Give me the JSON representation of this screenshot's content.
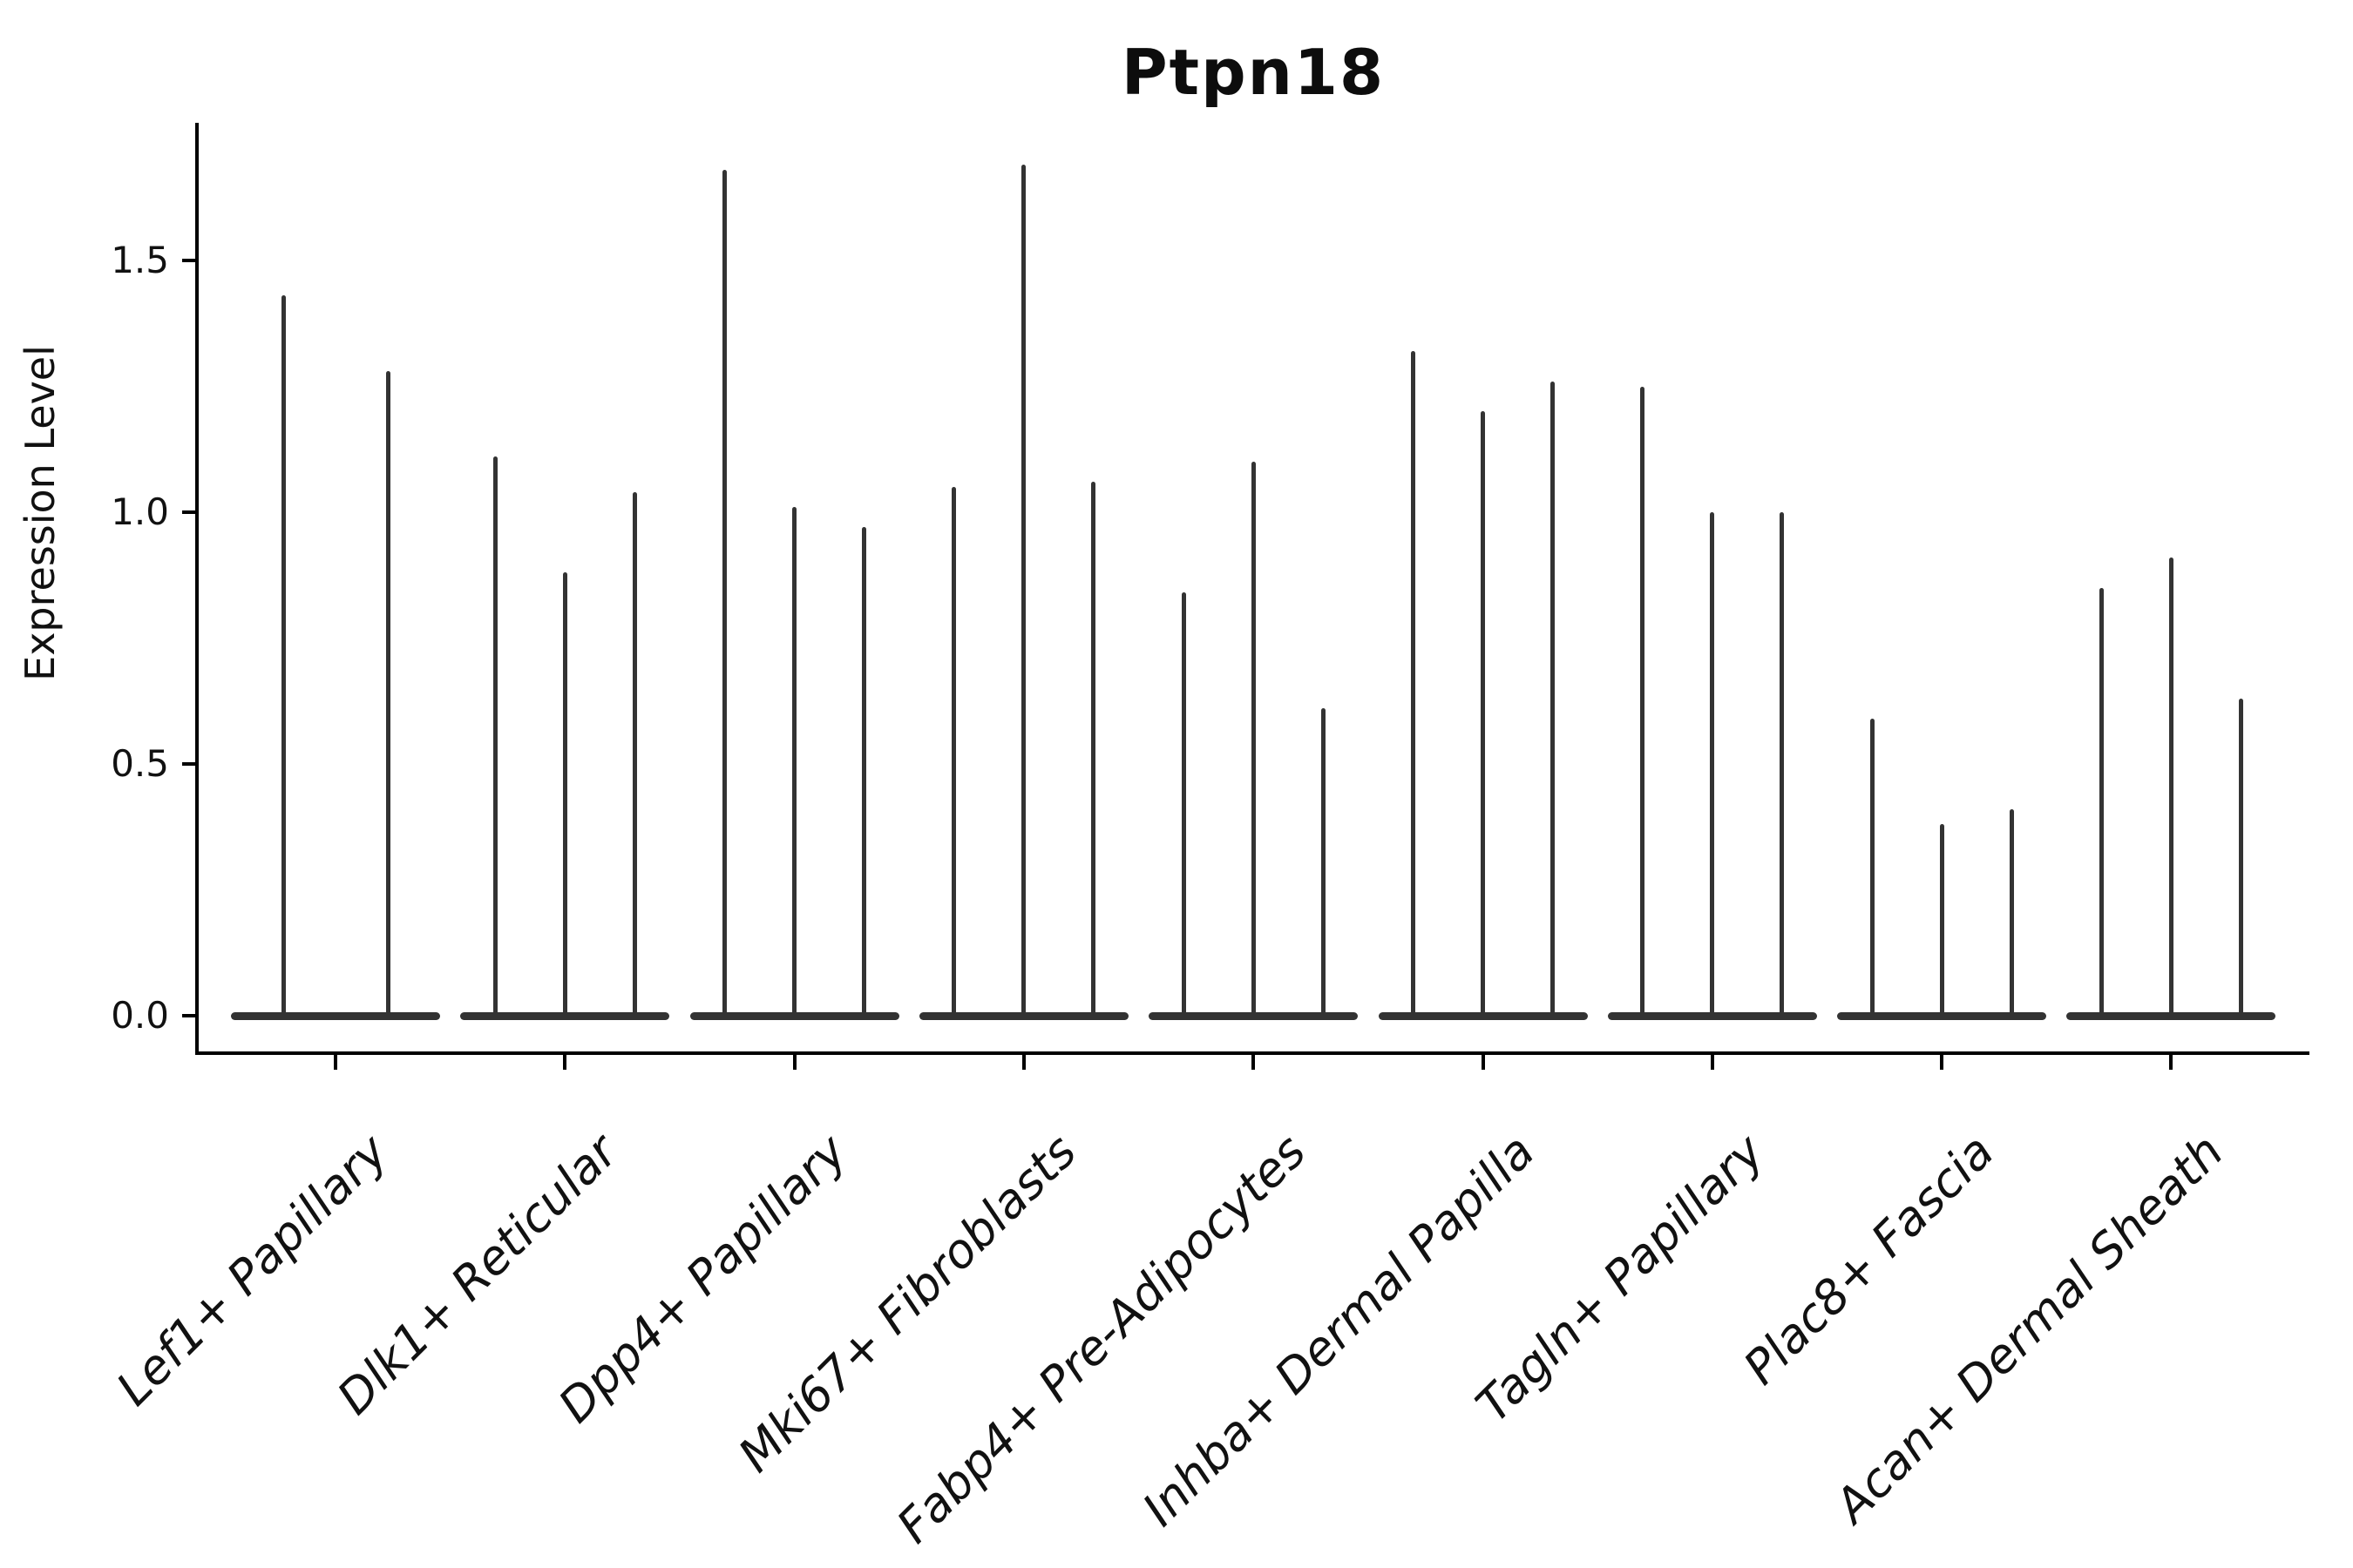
{
  "title": "Ptpn18",
  "y_axis": {
    "label": "Expression Level",
    "ticks": [
      {
        "label": "0.0",
        "value": 0.0
      },
      {
        "label": "0.5",
        "value": 0.5
      },
      {
        "label": "1.0",
        "value": 1.0
      },
      {
        "label": "1.5",
        "value": 1.5
      }
    ]
  },
  "chart_data": {
    "type": "violin",
    "title": "Ptpn18",
    "xlabel": "",
    "ylabel": "Expression Level",
    "ylim": [
      -0.08,
      1.77
    ],
    "grid": false,
    "legend": "none",
    "violin_style": "zero-inflated distributions: wide flat mass at 0 with a single thin spike reaching the listed peak expression value",
    "color": "#333333",
    "categories": [
      "Lef1+ Papillary",
      "Dlk1+ Reticular",
      "Dpp4+ Papillary",
      "Mki67+ Fibroblasts",
      "Fabp4+ Pre-Adipocytes",
      "Inhba+ Dermal Papilla",
      "Tagln+ Papillary",
      "Plac8+ Fascia",
      "Acan+ Dermal Sheath"
    ],
    "groups": [
      {
        "label": "Lef1+ Papillary",
        "violin_peaks": [
          1.43,
          1.28
        ]
      },
      {
        "label": "Dlk1+ Reticular",
        "violin_peaks": [
          1.11,
          0.88,
          1.04
        ]
      },
      {
        "label": "Dpp4+ Papillary",
        "violin_peaks": [
          1.68,
          1.01,
          0.97
        ]
      },
      {
        "label": "Mki67+ Fibroblasts",
        "violin_peaks": [
          1.05,
          1.69,
          1.06
        ]
      },
      {
        "label": "Fabp4+ Pre-Adipocytes",
        "violin_peaks": [
          0.84,
          1.1,
          0.61
        ]
      },
      {
        "label": "Inhba+ Dermal Papilla",
        "violin_peaks": [
          1.32,
          1.2,
          1.26
        ]
      },
      {
        "label": "Tagln+ Papillary",
        "violin_peaks": [
          1.25,
          1.0,
          1.0
        ]
      },
      {
        "label": "Plac8+ Fascia",
        "violin_peaks": [
          0.59,
          0.38,
          0.41
        ]
      },
      {
        "label": "Acan+ Dermal Sheath",
        "violin_peaks": [
          0.85,
          0.91,
          0.63
        ]
      }
    ]
  }
}
